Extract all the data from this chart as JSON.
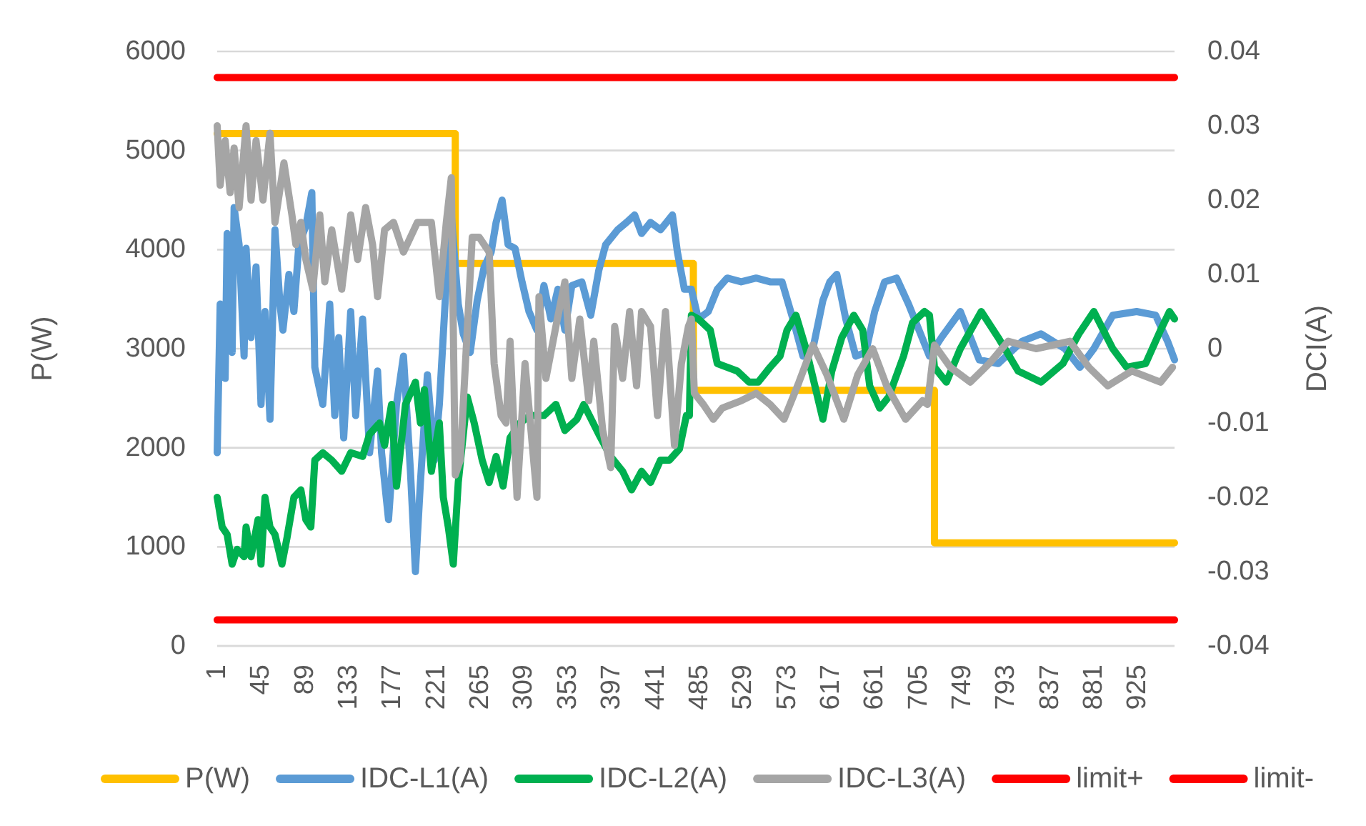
{
  "chart_data": {
    "type": "line",
    "ylabel": "P(W)",
    "y2label": "DCI(A)",
    "xlim": [
      1,
      962
    ],
    "xticks": [
      1,
      45,
      89,
      133,
      177,
      221,
      265,
      309,
      353,
      397,
      441,
      485,
      529,
      573,
      617,
      661,
      705,
      749,
      793,
      837,
      881,
      925
    ],
    "ylim": [
      0,
      6000
    ],
    "yticks": [
      0,
      1000,
      2000,
      3000,
      4000,
      5000,
      6000
    ],
    "y2lim": [
      -0.04,
      0.04
    ],
    "y2ticks": [
      -0.04,
      -0.03,
      -0.02,
      -0.01,
      0,
      0.01,
      0.02,
      0.03,
      0.04
    ],
    "grid": "y",
    "legend": "bottom",
    "series": [
      {
        "name": "P(W)",
        "color": "#ffc000",
        "x": [
          1,
          240,
          240,
          479,
          479,
          721,
          721,
          962
        ],
        "values": [
          5170,
          5170,
          3860,
          3860,
          2580,
          2580,
          1040,
          1040
        ]
      },
      {
        "name": "IDC-L1(A)",
        "color": "#5b9bd5",
        "axis": "y2",
        "x": [
          1,
          4,
          9,
          11,
          16,
          18,
          23,
          28,
          30,
          35,
          40,
          45,
          49,
          54,
          59,
          64,
          67,
          73,
          78,
          83,
          90,
          96,
          99,
          107,
          114,
          119,
          123,
          128,
          135,
          140,
          147,
          154,
          162,
          166,
          173,
          181,
          188,
          195,
          200,
          205,
          212,
          219,
          224,
          231,
          236,
          243,
          248,
          255,
          262,
          269,
          276,
          281,
          287,
          293,
          300,
          307,
          314,
          322,
          329,
          336,
          343,
          350,
          357,
          367,
          376,
          384,
          391,
          403,
          412,
          420,
          427,
          436,
          446,
          458,
          463,
          470,
          477,
          484,
          494,
          503,
          513,
          527,
          542,
          556,
          568,
          580,
          589,
          599,
          609,
          616,
          623,
          632,
          642,
          652,
          661,
          671,
          683,
          695,
          707,
          716,
          728,
          747,
          766,
          785,
          809,
          828,
          852,
          867,
          881,
          900,
          924,
          943,
          955,
          962
        ],
        "values": [
          -0.014,
          0.006,
          -0.004,
          0.0155,
          -0.0005,
          0.019,
          0.014,
          -0.001,
          0.0135,
          0.0015,
          0.011,
          -0.0075,
          0.005,
          -0.0095,
          0.016,
          0.006,
          0.0025,
          0.01,
          0.005,
          0.014,
          0.0165,
          0.021,
          -0.0025,
          -0.0075,
          0.006,
          -0.009,
          0.0015,
          -0.012,
          0.005,
          -0.009,
          0.004,
          -0.014,
          -0.003,
          -0.014,
          -0.023,
          -0.0075,
          -0.001,
          -0.0165,
          -0.03,
          -0.018,
          -0.0035,
          -0.015,
          -0.0075,
          0.009,
          0.018,
          0.006,
          0.002,
          -0.0005,
          0.0065,
          0.011,
          0.013,
          0.017,
          0.02,
          0.014,
          0.0135,
          0.009,
          0.005,
          0.0025,
          0.0085,
          0.004,
          0.008,
          0.0025,
          0.0085,
          0.009,
          0.0045,
          0.0105,
          0.014,
          0.016,
          0.017,
          0.018,
          0.0155,
          0.017,
          0.016,
          0.018,
          0.013,
          0.008,
          0.008,
          0.004,
          0.005,
          0.008,
          0.0095,
          0.009,
          0.0095,
          0.009,
          0.009,
          0.0035,
          -0.001,
          0,
          0.0065,
          0.009,
          0.01,
          0.004,
          -0.001,
          -0.0005,
          0.005,
          0.009,
          0.0095,
          0.006,
          0.002,
          -0.001,
          0.0015,
          0.005,
          -0.0015,
          -0.002,
          0.001,
          0.002,
          0,
          -0.0025,
          0,
          0.0045,
          0.005,
          0.0045,
          0.001,
          -0.0015
        ]
      },
      {
        "name": "IDC-L2(A)",
        "color": "#00b050",
        "axis": "y2",
        "x": [
          1,
          6,
          11,
          16,
          21,
          28,
          30,
          35,
          42,
          45,
          49,
          54,
          59,
          66,
          71,
          78,
          85,
          90,
          95,
          99,
          107,
          116,
          126,
          135,
          147,
          154,
          164,
          169,
          176,
          181,
          190,
          200,
          205,
          209,
          216,
          224,
          228,
          233,
          238,
          243,
          252,
          259,
          267,
          274,
          281,
          288,
          295,
          305,
          315,
          329,
          341,
          350,
          362,
          369,
          384,
          396,
          408,
          417,
          427,
          436,
          446,
          455,
          465,
          472,
          475,
          477,
          484,
          496,
          503,
          513,
          523,
          535,
          544,
          556,
          566,
          573,
          582,
          592,
          601,
          609,
          618,
          628,
          640,
          649,
          656,
          666,
          675,
          690,
          699,
          711,
          716,
          721,
          733,
          747,
          768,
          785,
          805,
          828,
          850,
          866,
          881,
          900,
          914,
          933,
          948,
          957,
          962
        ],
        "values": [
          -0.02,
          -0.024,
          -0.025,
          -0.029,
          -0.027,
          -0.028,
          -0.024,
          -0.028,
          -0.023,
          -0.029,
          -0.02,
          -0.024,
          -0.025,
          -0.029,
          -0.0255,
          -0.02,
          -0.019,
          -0.023,
          -0.024,
          -0.015,
          -0.014,
          -0.015,
          -0.0165,
          -0.014,
          -0.0145,
          -0.0115,
          -0.01,
          -0.013,
          -0.0075,
          -0.0185,
          -0.0075,
          -0.0045,
          -0.01,
          -0.0055,
          -0.0165,
          -0.01,
          -0.02,
          -0.024,
          -0.029,
          -0.018,
          -0.0065,
          -0.01,
          -0.015,
          -0.018,
          -0.0145,
          -0.0185,
          -0.012,
          -0.01,
          -0.009,
          -0.009,
          -0.0075,
          -0.011,
          -0.0095,
          -0.0075,
          -0.0115,
          -0.0145,
          -0.0165,
          -0.019,
          -0.0165,
          -0.018,
          -0.015,
          -0.015,
          -0.0135,
          -0.009,
          -0.009,
          0.0045,
          0.004,
          0.0025,
          -0.002,
          -0.0025,
          -0.003,
          -0.0045,
          -0.0045,
          -0.0025,
          -0.001,
          0.0025,
          0.0045,
          0,
          -0.005,
          -0.0095,
          -0.003,
          0.0015,
          0.0045,
          0.0025,
          -0.005,
          -0.008,
          -0.0065,
          -0.001,
          0.0035,
          0.005,
          0.0045,
          -0.0025,
          -0.0045,
          0,
          0.005,
          0.0015,
          -0.003,
          -0.0045,
          -0.002,
          0.002,
          0.005,
          0,
          -0.0025,
          -0.002,
          0.0025,
          0.005,
          0.004
        ]
      },
      {
        "name": "IDC-L3(A)",
        "color": "#a5a5a5",
        "axis": "y2",
        "x": [
          1,
          4,
          9,
          14,
          18,
          23,
          30,
          35,
          40,
          47,
          54,
          59,
          68,
          76,
          80,
          85,
          90,
          97,
          104,
          109,
          116,
          126,
          135,
          142,
          150,
          157,
          162,
          169,
          178,
          188,
          202,
          216,
          224,
          231,
          236,
          240,
          245,
          257,
          264,
          274,
          279,
          286,
          291,
          295,
          302,
          310,
          314,
          322,
          324,
          331,
          341,
          350,
          357,
          365,
          374,
          379,
          388,
          396,
          400,
          408,
          415,
          422,
          427,
          436,
          443,
          451,
          460,
          467,
          474,
          477,
          480,
          489,
          499,
          508,
          527,
          542,
          556,
          570,
          585,
          599,
          613,
          630,
          644,
          659,
          673,
          692,
          709,
          714,
          721,
          737,
          757,
          776,
          795,
          823,
          857,
          876,
          895,
          919,
          948,
          960
        ],
        "values": [
          0.03,
          0.022,
          0.028,
          0.021,
          0.027,
          0.019,
          0.03,
          0.02,
          0.028,
          0.02,
          0.029,
          0.017,
          0.025,
          0.018,
          0.014,
          0.017,
          0.012,
          0.008,
          0.018,
          0.009,
          0.016,
          0.008,
          0.018,
          0.012,
          0.019,
          0.014,
          0.007,
          0.016,
          0.017,
          0.013,
          0.017,
          0.017,
          0.007,
          0.017,
          0.023,
          -0.017,
          -0.015,
          0.015,
          0.015,
          0.013,
          -0.002,
          -0.009,
          -0.01,
          0.001,
          -0.02,
          -0.002,
          -0.008,
          -0.02,
          0.007,
          -0.004,
          0.003,
          0.009,
          -0.004,
          0.004,
          -0.007,
          0.001,
          -0.011,
          -0.016,
          0.003,
          -0.004,
          0.005,
          -0.005,
          0.005,
          0.003,
          -0.009,
          0.005,
          -0.013,
          -0.002,
          0.003,
          0.004,
          -0.006,
          -0.0075,
          -0.0095,
          -0.008,
          -0.007,
          -0.006,
          -0.0075,
          -0.0095,
          -0.0045,
          0.0005,
          -0.0035,
          -0.0095,
          -0.0035,
          0,
          -0.005,
          -0.0095,
          -0.007,
          -0.0075,
          0.0005,
          -0.0025,
          -0.0045,
          -0.002,
          0.001,
          0,
          0.001,
          -0.0025,
          -0.005,
          -0.003,
          -0.0045,
          -0.0025
        ]
      },
      {
        "name": "limit+",
        "color": "#ff0000",
        "axis": "y2",
        "x": [
          1,
          962
        ],
        "values": [
          0.0365,
          0.0365
        ]
      },
      {
        "name": "limit-",
        "color": "#ff0000",
        "axis": "y2",
        "x": [
          1,
          962
        ],
        "values": [
          -0.0365,
          -0.0365
        ]
      }
    ]
  }
}
